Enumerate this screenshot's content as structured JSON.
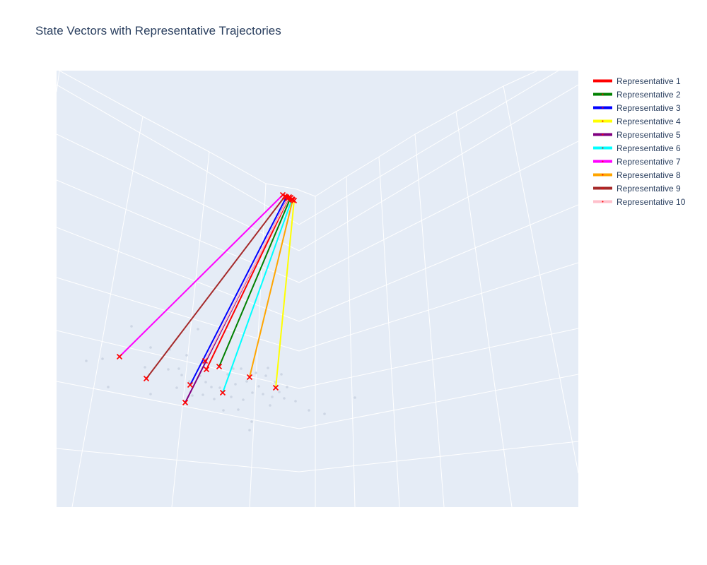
{
  "chart_data": {
    "type": "scatter",
    "mode": "3d-lines",
    "title": "State Vectors with Representative Trajectories",
    "legend_position": "top-right",
    "grid": true,
    "background_color": "#e5ecf6",
    "grid_color": "#ffffff",
    "marker_color": "#ff0000",
    "marker_symbol": "x",
    "series": [
      {
        "name": "Representative 1",
        "color": "#ff0000",
        "start": [
          292,
          523
        ],
        "end": [
          409,
          279
        ]
      },
      {
        "name": "Representative 2",
        "color": "#008000",
        "start": [
          310,
          519
        ],
        "end": [
          411,
          280
        ]
      },
      {
        "name": "Representative 3",
        "color": "#0000ff",
        "start": [
          269,
          545
        ],
        "end": [
          405,
          279
        ]
      },
      {
        "name": "Representative 4",
        "color": "#ffff00",
        "start": [
          390,
          549
        ],
        "end": [
          416,
          284
        ]
      },
      {
        "name": "Representative 5",
        "color": "#800080",
        "start": [
          262,
          570
        ],
        "end": [
          407,
          281
        ]
      },
      {
        "name": "Representative 6",
        "color": "#00ffff",
        "start": [
          315,
          556
        ],
        "end": [
          413,
          282
        ]
      },
      {
        "name": "Representative 7",
        "color": "#ff00ff",
        "start": [
          169,
          505
        ],
        "end": [
          400,
          276
        ]
      },
      {
        "name": "Representative 8",
        "color": "#ffa500",
        "start": [
          353,
          534
        ],
        "end": [
          414,
          283
        ]
      },
      {
        "name": "Representative 9",
        "color": "#a52a2a",
        "start": [
          207,
          536
        ],
        "end": [
          403,
          278
        ]
      },
      {
        "name": "Representative 10",
        "color": "#ffc0cb",
        "start": [
          290,
          511
        ],
        "end": [
          408,
          280
        ]
      }
    ]
  }
}
